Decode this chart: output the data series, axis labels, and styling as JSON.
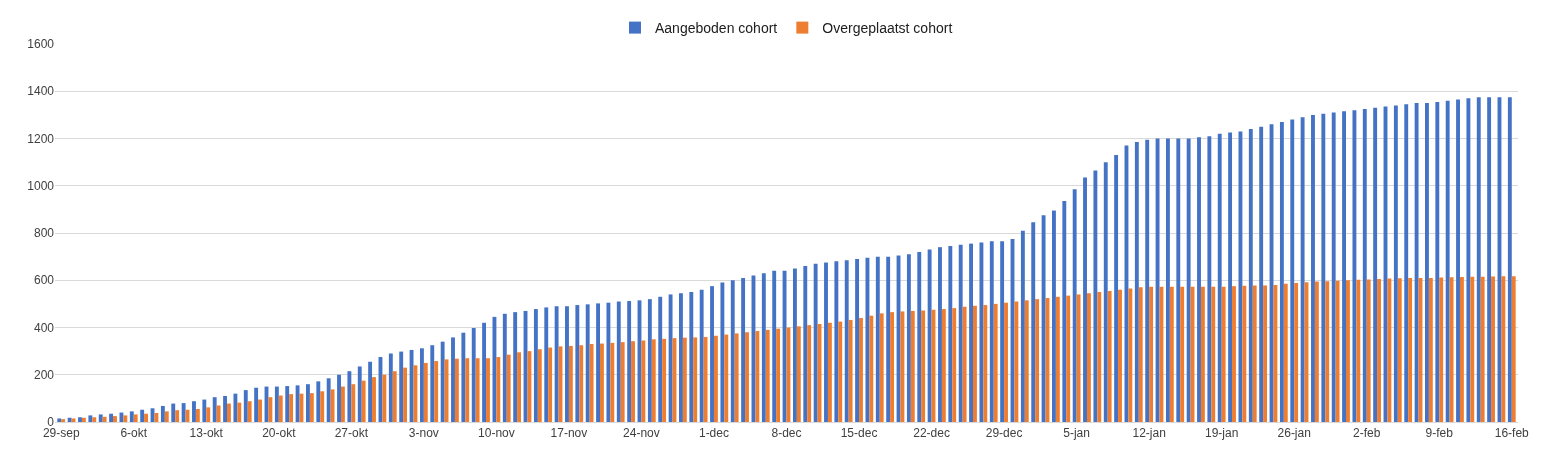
{
  "chart_data": {
    "type": "bar",
    "categories": [
      "29-sep",
      null,
      null,
      null,
      null,
      null,
      null,
      "6-okt",
      null,
      null,
      null,
      null,
      null,
      null,
      "13-okt",
      null,
      null,
      null,
      null,
      null,
      null,
      "20-okt",
      null,
      null,
      null,
      null,
      null,
      null,
      "27-okt",
      null,
      null,
      null,
      null,
      null,
      null,
      "3-nov",
      null,
      null,
      null,
      null,
      null,
      null,
      "10-nov",
      null,
      null,
      null,
      null,
      null,
      null,
      "17-nov",
      null,
      null,
      null,
      null,
      null,
      null,
      "24-nov",
      null,
      null,
      null,
      null,
      null,
      null,
      "1-dec",
      null,
      null,
      null,
      null,
      null,
      null,
      "8-dec",
      null,
      null,
      null,
      null,
      null,
      null,
      "15-dec",
      null,
      null,
      null,
      null,
      null,
      null,
      "22-dec",
      null,
      null,
      null,
      null,
      null,
      null,
      "29-dec",
      null,
      null,
      null,
      null,
      null,
      null,
      "5-jan",
      null,
      null,
      null,
      null,
      null,
      null,
      "12-jan",
      null,
      null,
      null,
      null,
      null,
      null,
      "19-jan",
      null,
      null,
      null,
      null,
      null,
      null,
      "26-jan",
      null,
      null,
      null,
      null,
      null,
      null,
      "2-feb",
      null,
      null,
      null,
      null,
      null,
      null,
      "9-feb",
      null,
      null,
      null,
      null,
      null,
      null,
      "16-feb"
    ],
    "series": [
      {
        "name": "Aangeboden cohort",
        "color": "#4472c4",
        "values": [
          15,
          18,
          20,
          28,
          32,
          35,
          40,
          45,
          52,
          58,
          68,
          78,
          80,
          88,
          95,
          105,
          110,
          120,
          135,
          145,
          150,
          150,
          152,
          155,
          160,
          172,
          185,
          200,
          215,
          235,
          255,
          275,
          290,
          298,
          305,
          312,
          325,
          340,
          358,
          378,
          398,
          420,
          445,
          458,
          465,
          470,
          478,
          485,
          490,
          490,
          495,
          498,
          502,
          505,
          510,
          512,
          515,
          520,
          530,
          540,
          545,
          550,
          560,
          575,
          590,
          600,
          610,
          620,
          630,
          640,
          640,
          650,
          660,
          670,
          675,
          680,
          685,
          690,
          695,
          700,
          700,
          705,
          710,
          720,
          730,
          740,
          745,
          750,
          755,
          760,
          765,
          765,
          775,
          810,
          845,
          875,
          895,
          935,
          985,
          1035,
          1065,
          1100,
          1130,
          1170,
          1185,
          1195,
          1200,
          1200,
          1200,
          1200,
          1205,
          1210,
          1220,
          1225,
          1230,
          1240,
          1250,
          1260,
          1270,
          1280,
          1290,
          1300,
          1305,
          1310,
          1315,
          1320,
          1325,
          1330,
          1335,
          1340,
          1345,
          1350,
          1350,
          1355,
          1360,
          1365,
          1370,
          1375,
          1375,
          1375,
          1375
        ]
      },
      {
        "name": "Overgeplaatst cohort",
        "color": "#ed7d31",
        "values": [
          12,
          15,
          18,
          20,
          22,
          25,
          28,
          32,
          35,
          38,
          45,
          50,
          52,
          55,
          62,
          70,
          78,
          82,
          88,
          95,
          105,
          112,
          118,
          120,
          122,
          130,
          138,
          150,
          160,
          175,
          190,
          200,
          215,
          230,
          240,
          250,
          258,
          265,
          268,
          270,
          270,
          270,
          275,
          285,
          295,
          300,
          308,
          315,
          320,
          322,
          325,
          330,
          332,
          335,
          338,
          342,
          345,
          350,
          352,
          355,
          357,
          358,
          360,
          365,
          370,
          375,
          380,
          385,
          390,
          395,
          400,
          405,
          410,
          415,
          420,
          425,
          432,
          440,
          450,
          460,
          465,
          468,
          470,
          472,
          475,
          478,
          482,
          488,
          492,
          495,
          500,
          505,
          510,
          515,
          520,
          525,
          530,
          535,
          540,
          545,
          550,
          555,
          560,
          565,
          570,
          572,
          572,
          573,
          573,
          573,
          573,
          573,
          573,
          575,
          577,
          578,
          578,
          580,
          585,
          588,
          592,
          595,
          596,
          598,
          600,
          602,
          603,
          605,
          607,
          608,
          609,
          610,
          610,
          612,
          613,
          614,
          615,
          615,
          616,
          617,
          617
        ]
      }
    ],
    "ylim": [
      0,
      1600
    ],
    "yticks": [
      0,
      200,
      400,
      600,
      800,
      1000,
      1200,
      1400,
      1600
    ],
    "grid": "y",
    "legend": "top"
  }
}
